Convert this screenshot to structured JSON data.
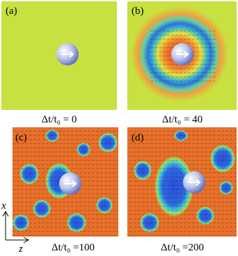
{
  "panels": [
    {
      "label": "(a)",
      "caption": "Δt/t₀ = 0"
    },
    {
      "label": "(b)",
      "caption": "Δt/t₀ = 40"
    },
    {
      "label": "(c)",
      "caption": "Δt/t₀ =100"
    },
    {
      "label": "(d)",
      "caption": "Δt/t₀ =200"
    }
  ],
  "axes": {
    "vertical": "x",
    "horizontal": "z"
  }
}
